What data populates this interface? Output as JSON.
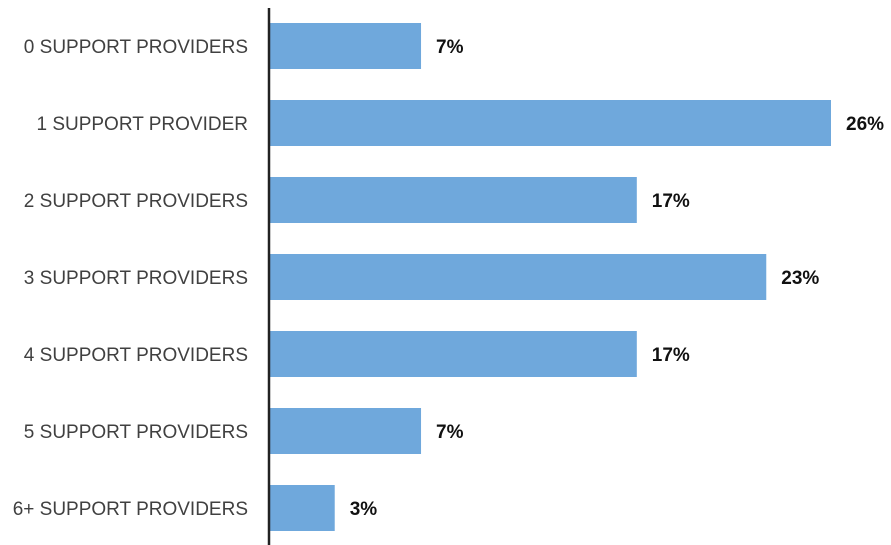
{
  "chart_data": {
    "type": "bar",
    "orientation": "horizontal",
    "title": "",
    "xlabel": "",
    "ylabel": "",
    "categories": [
      "0 SUPPORT PROVIDERS",
      "1 SUPPORT PROVIDER",
      "2 SUPPORT PROVIDERS",
      "3 SUPPORT PROVIDERS",
      "4 SUPPORT PROVIDERS",
      "5 SUPPORT PROVIDERS",
      "6+ SUPPORT PROVIDERS"
    ],
    "values": [
      7,
      26,
      17,
      23,
      17,
      7,
      3
    ],
    "data_labels": [
      "7%",
      "26%",
      "17%",
      "23%",
      "17%",
      "7%",
      "3%"
    ],
    "xlim": [
      0,
      26
    ],
    "grid": false,
    "legend": "none",
    "bar_color": "#6FA8DC",
    "axis_color": "#222222"
  }
}
